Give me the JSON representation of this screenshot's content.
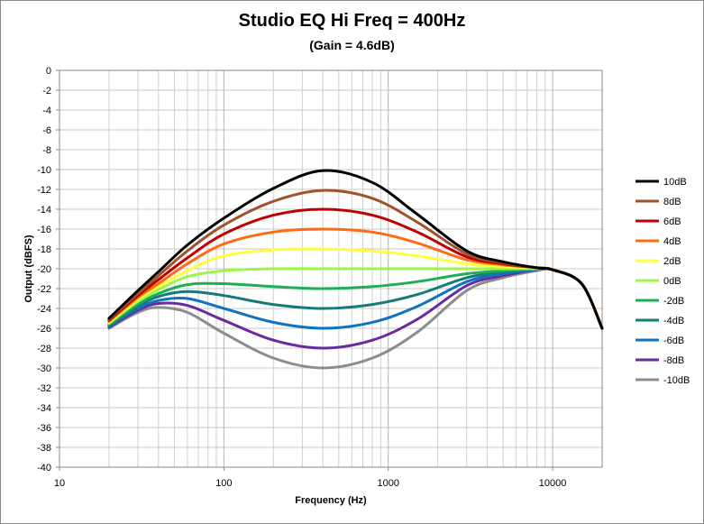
{
  "chart_data": {
    "type": "line",
    "title": "Studio EQ Hi Freq = 400Hz",
    "subtitle": "(Gain = 4.6dB)",
    "xlabel": "Frequency (Hz)",
    "ylabel": "Output (dBFS)",
    "x_scale": "log",
    "xlim": [
      10,
      20000
    ],
    "ylim": [
      -40,
      0
    ],
    "x_ticks": [
      "10",
      "100",
      "1000",
      "10000"
    ],
    "y_ticks": [
      "0",
      "-2",
      "-4",
      "-6",
      "-8",
      "-10",
      "-12",
      "-14",
      "-16",
      "-18",
      "-20",
      "-22",
      "-24",
      "-26",
      "-28",
      "-30",
      "-32",
      "-34",
      "-36",
      "-38",
      "-40"
    ],
    "grid": true,
    "legend_position": "right",
    "x": [
      20,
      30,
      40,
      60,
      100,
      200,
      400,
      800,
      1500,
      3000,
      5000,
      8000,
      10000,
      15000,
      20000
    ],
    "series": [
      {
        "name": "10dB",
        "color": "#000000",
        "values": [
          -25.0,
          -22.2,
          -20.3,
          -17.6,
          -14.9,
          -11.9,
          -10.1,
          -11.3,
          -14.5,
          -18.2,
          -19.3,
          -19.9,
          -20.1,
          -21.5,
          -26.0
        ]
      },
      {
        "name": "8dB",
        "color": "#a0522d",
        "values": [
          -25.1,
          -22.5,
          -20.7,
          -18.2,
          -15.6,
          -13.2,
          -12.1,
          -12.9,
          -15.3,
          -18.5,
          -19.4,
          -19.9,
          -20.1,
          -21.5,
          -26.0
        ]
      },
      {
        "name": "6dB",
        "color": "#c00000",
        "values": [
          -25.2,
          -22.7,
          -21.1,
          -18.9,
          -16.5,
          -14.6,
          -14.0,
          -14.6,
          -16.3,
          -18.8,
          -19.5,
          -19.9,
          -20.1,
          -21.5,
          -26.0
        ]
      },
      {
        "name": "4dB",
        "color": "#ff6a13",
        "values": [
          -25.3,
          -22.9,
          -21.5,
          -19.5,
          -17.5,
          -16.3,
          -16.0,
          -16.3,
          -17.4,
          -19.1,
          -19.6,
          -19.9,
          -20.1,
          -21.5,
          -26.0
        ]
      },
      {
        "name": "2dB",
        "color": "#ffff3c",
        "values": [
          -25.4,
          -23.1,
          -21.8,
          -20.2,
          -18.7,
          -18.1,
          -18.0,
          -18.2,
          -18.7,
          -19.5,
          -19.8,
          -19.9,
          -20.1,
          -21.5,
          -26.0
        ]
      },
      {
        "name": "0dB",
        "color": "#9cf548",
        "values": [
          -25.5,
          -23.3,
          -22.1,
          -20.8,
          -20.2,
          -20.0,
          -20.0,
          -20.0,
          -20.0,
          -20.0,
          -20.0,
          -20.0,
          -20.1,
          -21.5,
          -26.0
        ]
      },
      {
        "name": "-2dB",
        "color": "#1fad55",
        "values": [
          -25.6,
          -23.6,
          -22.5,
          -21.6,
          -21.5,
          -21.8,
          -22.0,
          -21.8,
          -21.3,
          -20.5,
          -20.2,
          -20.0,
          -20.1,
          -21.5,
          -26.0
        ]
      },
      {
        "name": "-4dB",
        "color": "#177a7a",
        "values": [
          -25.7,
          -23.8,
          -22.8,
          -22.3,
          -22.7,
          -23.6,
          -24.0,
          -23.6,
          -22.6,
          -20.9,
          -20.3,
          -20.0,
          -20.1,
          -21.5,
          -26.0
        ]
      },
      {
        "name": "-6dB",
        "color": "#0d74c2",
        "values": [
          -25.8,
          -24.0,
          -23.2,
          -23.0,
          -24.0,
          -25.4,
          -26.0,
          -25.4,
          -23.8,
          -21.3,
          -20.5,
          -20.1,
          -20.1,
          -21.5,
          -26.0
        ]
      },
      {
        "name": "-8dB",
        "color": "#6a2ba0",
        "values": [
          -25.9,
          -24.2,
          -23.5,
          -23.7,
          -25.2,
          -27.2,
          -28.0,
          -27.2,
          -25.1,
          -21.7,
          -20.7,
          -20.1,
          -20.1,
          -21.5,
          -26.0
        ]
      },
      {
        "name": "-10dB",
        "color": "#8c8c8c",
        "values": [
          -26.0,
          -24.4,
          -23.9,
          -24.4,
          -26.5,
          -29.0,
          -30.0,
          -29.0,
          -26.4,
          -22.2,
          -20.9,
          -20.2,
          -20.1,
          -21.5,
          -26.0
        ]
      }
    ]
  }
}
